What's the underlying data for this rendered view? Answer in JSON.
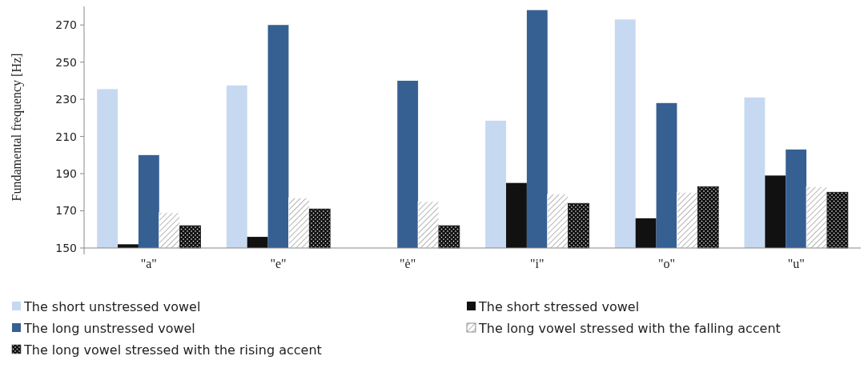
{
  "chart_data": {
    "type": "bar",
    "ylabel": "Fundamental  frequency  [Hz]",
    "categories": [
      "\"a\"",
      "\"e\"",
      "\"ė\"",
      "\"i\"",
      "\"o\"",
      "\"u\""
    ],
    "ylim": [
      150,
      280
    ],
    "yticks": [
      150,
      170,
      190,
      210,
      230,
      250,
      270
    ],
    "grid": false,
    "legend": "bottom",
    "series": [
      {
        "name": "The short unstressed vowel",
        "color": "#c6d9f1",
        "values": [
          235.5,
          237.5,
          null,
          218.5,
          273,
          231
        ]
      },
      {
        "name": "The short stressed vowel",
        "color": "#111111",
        "values": [
          152,
          156,
          null,
          185,
          166,
          189
        ]
      },
      {
        "name": "The long unstressed vowel",
        "color": "#376092",
        "values": [
          200,
          270,
          240,
          278,
          228,
          203
        ]
      },
      {
        "name": "The long vowel stressed with the falling accent",
        "color": "#ffffff",
        "values": [
          169,
          177,
          175,
          179,
          180,
          183
        ]
      },
      {
        "name": "The long vowel stressed with the rising accent",
        "color": "#111111",
        "values": [
          162,
          171,
          162,
          174,
          183,
          180
        ]
      }
    ]
  }
}
